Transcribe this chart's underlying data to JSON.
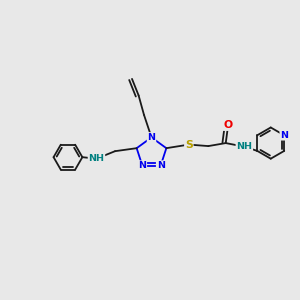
{
  "bg_color": "#e8e8e8",
  "bond_color": "#1a1a1a",
  "N_color": "#0000ee",
  "S_color": "#b8a000",
  "O_color": "#ee0000",
  "NH_color": "#008080",
  "bond_width": 1.3,
  "font_size": 6.8,
  "dbl_off": 0.008,
  "figsize": [
    3.0,
    3.0
  ],
  "dpi": 100,
  "xlim": [
    0,
    1
  ],
  "ylim": [
    0,
    1
  ]
}
